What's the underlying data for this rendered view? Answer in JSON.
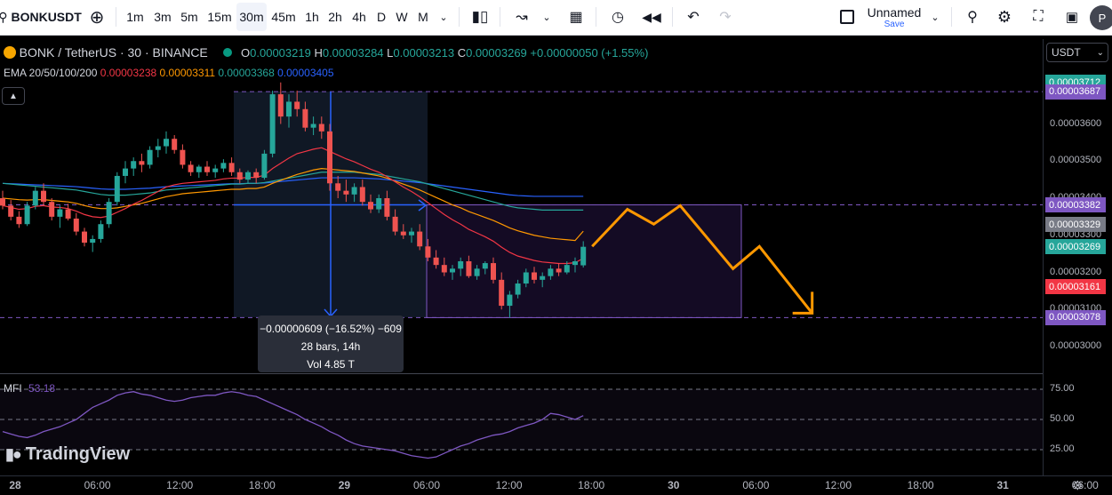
{
  "toolbar": {
    "symbol": "BONKUSDT",
    "timeframes": [
      "1m",
      "3m",
      "5m",
      "15m",
      "30m",
      "45m",
      "1h",
      "2h",
      "4h",
      "D",
      "W",
      "M"
    ],
    "active_timeframe": "30m",
    "layout_name": "Unnamed",
    "layout_sub": "Save",
    "avatar_letter": "P"
  },
  "header": {
    "title": "BONK / TetherUS · 30 · BINANCE",
    "o_label": "O",
    "o": "0.00003219",
    "h_label": "H",
    "h": "0.00003284",
    "l_label": "L",
    "l": "0.00003213",
    "c_label": "C",
    "c": "0.00003269",
    "change": "+0.00000050 (+1.55%)",
    "ema_label": "EMA 20/50/100/200",
    "ema_values": [
      "0.00003238",
      "0.00003311",
      "0.00003368",
      "0.00003405"
    ],
    "currency": "USDT"
  },
  "colors": {
    "up": "#26a69a",
    "down": "#ef5350",
    "ema20": "#f23645",
    "ema50": "#ff9800",
    "ema100": "#26a69a",
    "ema200": "#2962ff",
    "forecast": "#ff9800",
    "range_box": "#9c27b0",
    "mfi": "#7e57c2"
  },
  "measure": {
    "line1": "−0.00000609 (−16.52%) −609",
    "line2": "28 bars, 14h",
    "line3": "Vol 4.85 T"
  },
  "mfi": {
    "label": "MFI",
    "value": "53.18"
  },
  "brand": {
    "name": "TradingView"
  },
  "chart_data": {
    "type": "candlestick",
    "interval": "30m",
    "y_ticks": [
      "0.00003600",
      "0.00003500",
      "0.00003400",
      "0.00003300",
      "0.00003200",
      "0.00003100",
      "0.00003000"
    ],
    "price_labels": [
      {
        "value": "0.00003712",
        "color": "#26a69a"
      },
      {
        "value": "0.00003687",
        "color": "#7e57c2"
      },
      {
        "value": "0.00003382",
        "color": "#7e57c2"
      },
      {
        "value": "0.00003329",
        "color": "#787b86"
      },
      {
        "value": "0.00003269",
        "color": "#26a69a"
      },
      {
        "value": "0.00003161",
        "color": "#f23645"
      },
      {
        "value": "0.00003078",
        "color": "#7e57c2"
      }
    ],
    "x_ticks": [
      "28",
      "06:00",
      "12:00",
      "18:00",
      "29",
      "06:00",
      "12:00",
      "18:00",
      "30",
      "06:00",
      "12:00",
      "18:00",
      "31",
      "06:00"
    ],
    "mfi_ticks": [
      "75.00",
      "50.00",
      "25.00"
    ],
    "candles": [
      [
        3400,
        3420,
        3370,
        3380
      ],
      [
        3380,
        3395,
        3340,
        3350
      ],
      [
        3350,
        3365,
        3320,
        3330
      ],
      [
        3330,
        3390,
        3325,
        3380
      ],
      [
        3380,
        3430,
        3370,
        3420
      ],
      [
        3420,
        3440,
        3380,
        3390
      ],
      [
        3390,
        3400,
        3340,
        3350
      ],
      [
        3350,
        3380,
        3320,
        3370
      ],
      [
        3370,
        3385,
        3340,
        3345
      ],
      [
        3345,
        3360,
        3300,
        3310
      ],
      [
        3310,
        3320,
        3270,
        3280
      ],
      [
        3280,
        3300,
        3255,
        3290
      ],
      [
        3290,
        3340,
        3280,
        3330
      ],
      [
        3330,
        3400,
        3320,
        3390
      ],
      [
        3390,
        3470,
        3380,
        3460
      ],
      [
        3460,
        3500,
        3440,
        3480
      ],
      [
        3480,
        3510,
        3460,
        3500
      ],
      [
        3500,
        3520,
        3470,
        3490
      ],
      [
        3490,
        3540,
        3480,
        3530
      ],
      [
        3530,
        3560,
        3510,
        3540
      ],
      [
        3540,
        3580,
        3520,
        3560
      ],
      [
        3560,
        3570,
        3520,
        3530
      ],
      [
        3530,
        3545,
        3480,
        3490
      ],
      [
        3490,
        3500,
        3460,
        3470
      ],
      [
        3470,
        3490,
        3455,
        3485
      ],
      [
        3485,
        3500,
        3460,
        3470
      ],
      [
        3470,
        3490,
        3455,
        3480
      ],
      [
        3480,
        3505,
        3470,
        3495
      ],
      [
        3495,
        3510,
        3460,
        3470
      ],
      [
        3470,
        3480,
        3440,
        3450
      ],
      [
        3450,
        3475,
        3440,
        3470
      ],
      [
        3470,
        3480,
        3440,
        3455
      ],
      [
        3455,
        3530,
        3450,
        3520
      ],
      [
        3520,
        3690,
        3510,
        3680
      ],
      [
        3680,
        3712,
        3600,
        3620
      ],
      [
        3620,
        3680,
        3590,
        3660
      ],
      [
        3660,
        3690,
        3620,
        3640
      ],
      [
        3640,
        3660,
        3580,
        3590
      ],
      [
        3590,
        3620,
        3570,
        3600
      ],
      [
        3600,
        3620,
        3560,
        3580
      ],
      [
        3580,
        3600,
        3420,
        3440
      ],
      [
        3440,
        3460,
        3400,
        3420
      ],
      [
        3420,
        3450,
        3390,
        3410
      ],
      [
        3410,
        3440,
        3390,
        3430
      ],
      [
        3430,
        3450,
        3380,
        3390
      ],
      [
        3390,
        3410,
        3360,
        3370
      ],
      [
        3370,
        3410,
        3360,
        3400
      ],
      [
        3400,
        3420,
        3340,
        3350
      ],
      [
        3350,
        3370,
        3300,
        3310
      ],
      [
        3310,
        3330,
        3290,
        3300
      ],
      [
        3300,
        3320,
        3280,
        3310
      ],
      [
        3310,
        3330,
        3260,
        3270
      ],
      [
        3270,
        3290,
        3230,
        3240
      ],
      [
        3240,
        3260,
        3210,
        3220
      ],
      [
        3220,
        3240,
        3190,
        3200
      ],
      [
        3200,
        3220,
        3180,
        3210
      ],
      [
        3210,
        3240,
        3190,
        3230
      ],
      [
        3230,
        3245,
        3185,
        3190
      ],
      [
        3190,
        3220,
        3180,
        3210
      ],
      [
        3210,
        3230,
        3195,
        3225
      ],
      [
        3225,
        3240,
        3170,
        3180
      ],
      [
        3180,
        3200,
        3100,
        3110
      ],
      [
        3110,
        3150,
        3078,
        3140
      ],
      [
        3140,
        3180,
        3130,
        3170
      ],
      [
        3170,
        3210,
        3160,
        3200
      ],
      [
        3200,
        3215,
        3170,
        3180
      ],
      [
        3180,
        3200,
        3160,
        3190
      ],
      [
        3190,
        3220,
        3180,
        3210
      ],
      [
        3210,
        3225,
        3190,
        3200
      ],
      [
        3200,
        3230,
        3195,
        3220
      ],
      [
        3220,
        3240,
        3200,
        3230
      ],
      [
        3219,
        3284,
        3213,
        3269
      ]
    ],
    "ema20": [
      3380,
      3375,
      3370,
      3372,
      3378,
      3380,
      3376,
      3375,
      3372,
      3365,
      3356,
      3350,
      3348,
      3352,
      3362,
      3372,
      3384,
      3394,
      3406,
      3418,
      3430,
      3436,
      3440,
      3442,
      3444,
      3446,
      3448,
      3452,
      3454,
      3454,
      3456,
      3456,
      3462,
      3480,
      3494,
      3508,
      3520,
      3526,
      3532,
      3536,
      3526,
      3516,
      3506,
      3498,
      3488,
      3478,
      3470,
      3458,
      3444,
      3430,
      3418,
      3404,
      3388,
      3372,
      3356,
      3342,
      3330,
      3316,
      3306,
      3296,
      3284,
      3268,
      3254,
      3244,
      3238,
      3232,
      3228,
      3226,
      3224,
      3224,
      3226,
      3238
    ],
    "ema50": [
      3400,
      3398,
      3396,
      3395,
      3396,
      3396,
      3394,
      3392,
      3390,
      3386,
      3380,
      3375,
      3372,
      3372,
      3374,
      3378,
      3382,
      3386,
      3392,
      3398,
      3404,
      3408,
      3412,
      3414,
      3416,
      3418,
      3420,
      3422,
      3424,
      3424,
      3426,
      3426,
      3430,
      3440,
      3448,
      3456,
      3464,
      3470,
      3476,
      3480,
      3478,
      3476,
      3474,
      3472,
      3468,
      3464,
      3460,
      3454,
      3446,
      3438,
      3430,
      3422,
      3412,
      3402,
      3392,
      3382,
      3374,
      3364,
      3356,
      3348,
      3340,
      3330,
      3320,
      3312,
      3306,
      3300,
      3296,
      3292,
      3290,
      3288,
      3286,
      3311
    ],
    "ema100": [
      3440,
      3438,
      3436,
      3434,
      3432,
      3430,
      3428,
      3426,
      3424,
      3422,
      3418,
      3414,
      3410,
      3408,
      3408,
      3408,
      3410,
      3412,
      3414,
      3418,
      3422,
      3424,
      3426,
      3428,
      3430,
      3432,
      3434,
      3436,
      3438,
      3438,
      3440,
      3440,
      3442,
      3446,
      3450,
      3454,
      3458,
      3462,
      3466,
      3470,
      3470,
      3470,
      3470,
      3470,
      3468,
      3466,
      3464,
      3460,
      3456,
      3452,
      3448,
      3444,
      3438,
      3432,
      3426,
      3420,
      3414,
      3408,
      3402,
      3396,
      3390,
      3384,
      3378,
      3374,
      3372,
      3370,
      3368,
      3368,
      3368,
      3368,
      3368,
      3368
    ],
    "ema200": [
      3440,
      3439,
      3438,
      3437,
      3436,
      3435,
      3434,
      3433,
      3432,
      3431,
      3429,
      3427,
      3425,
      3424,
      3424,
      3424,
      3425,
      3426,
      3427,
      3429,
      3431,
      3432,
      3433,
      3434,
      3435,
      3436,
      3437,
      3438,
      3439,
      3439,
      3440,
      3440,
      3441,
      3443,
      3445,
      3447,
      3449,
      3451,
      3453,
      3455,
      3455,
      3455,
      3455,
      3455,
      3454,
      3453,
      3452,
      3450,
      3448,
      3446,
      3444,
      3442,
      3439,
      3436,
      3433,
      3430,
      3427,
      3424,
      3421,
      3418,
      3415,
      3412,
      3409,
      3407,
      3406,
      3405,
      3405,
      3405,
      3405,
      3405,
      3405,
      3405
    ],
    "forecast": [
      [
        3270,
        0
      ],
      [
        3370,
        4
      ],
      [
        3330,
        7
      ],
      [
        3380,
        10
      ],
      [
        3210,
        16
      ],
      [
        3270,
        19
      ],
      [
        3090,
        25
      ]
    ],
    "mfi_series": [
      40,
      38,
      36,
      35,
      37,
      40,
      42,
      44,
      47,
      50,
      55,
      60,
      63,
      66,
      70,
      72,
      73,
      71,
      70,
      68,
      66,
      65,
      66,
      68,
      69,
      70,
      70,
      72,
      73,
      72,
      70,
      69,
      66,
      63,
      60,
      57,
      54,
      50,
      47,
      44,
      40,
      37,
      33,
      30,
      28,
      27,
      26,
      25,
      24,
      22,
      20,
      19,
      18,
      19,
      22,
      25,
      28,
      30,
      33,
      35,
      37,
      38,
      40,
      43,
      45,
      47,
      50,
      55,
      54,
      52,
      50,
      53.18
    ]
  }
}
